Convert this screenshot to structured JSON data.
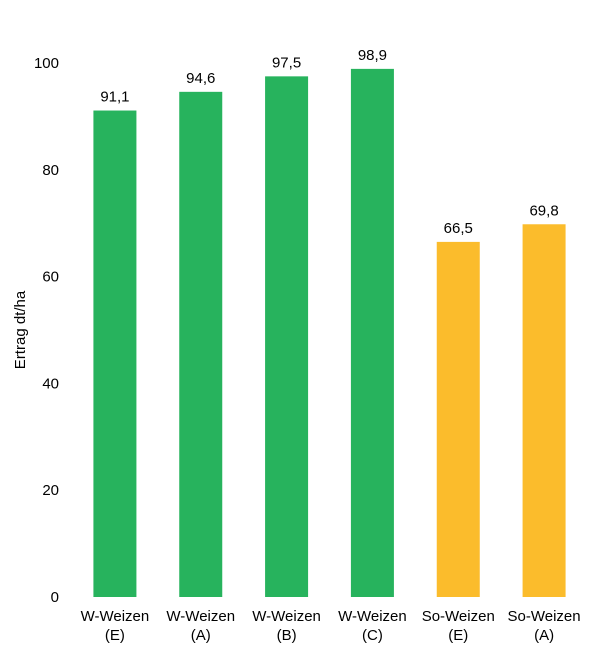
{
  "chart_data": {
    "type": "bar",
    "title": "",
    "xlabel": "",
    "ylabel": "Ertrag dt/ha",
    "ylim": [
      0,
      100
    ],
    "yticks": [
      0,
      20,
      40,
      60,
      80,
      100
    ],
    "grid": false,
    "legend": "none",
    "categories": [
      [
        "W-Weizen",
        "(E)"
      ],
      [
        "W-Weizen",
        "(A)"
      ],
      [
        "W-Weizen",
        "(B)"
      ],
      [
        "W-Weizen",
        "(C)"
      ],
      [
        "So-Weizen",
        "(E)"
      ],
      [
        "So-Weizen",
        "(A)"
      ]
    ],
    "values": [
      91.1,
      94.6,
      97.5,
      98.9,
      66.5,
      69.8
    ],
    "value_labels": [
      "91,1",
      "94,6",
      "97,5",
      "98,9",
      "66,5",
      "69,8"
    ],
    "bar_colors": [
      "#27B35D",
      "#27B35D",
      "#27B35D",
      "#27B35D",
      "#FBBC2C",
      "#FBBC2C"
    ]
  }
}
